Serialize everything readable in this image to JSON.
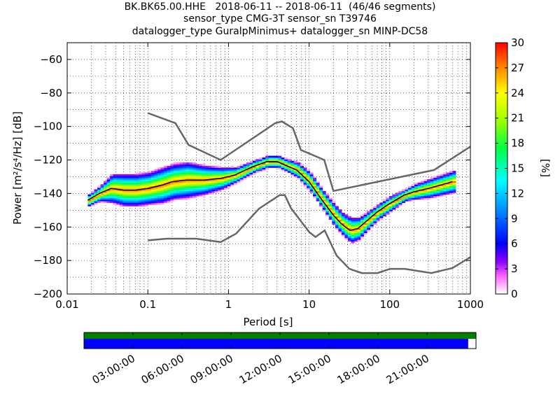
{
  "chart_data": {
    "type": "heatmap",
    "title_lines": [
      "BK.BK65.00.HHE   2018-06-11 -- 2018-06-11  (46/46 segments)",
      "sensor_type CMG-3T sensor_sn T39746",
      "datalogger_type GuralpMinimus+ datalogger_sn MINP-DC58"
    ],
    "xlabel": "Period [s]",
    "ylabel": "Power [m²/s⁴/Hz] [dB]",
    "xscale": "log",
    "xlim": [
      0.01,
      1000
    ],
    "ylim": [
      -200,
      -50
    ],
    "xticks": [
      {
        "v": 0.01,
        "label": "0.01"
      },
      {
        "v": 0.1,
        "label": "0.1"
      },
      {
        "v": 1,
        "label": "1"
      },
      {
        "v": 10,
        "label": "10"
      },
      {
        "v": 100,
        "label": "100"
      },
      {
        "v": 1000,
        "label": "1000"
      }
    ],
    "yticks": [
      -60,
      -80,
      -100,
      -120,
      -140,
      -160,
      -180,
      -200
    ],
    "grid": true,
    "colorbar": {
      "label": "[%]",
      "range": [
        0,
        30
      ],
      "ticks": [
        0,
        3,
        6,
        9,
        12,
        15,
        18,
        21,
        24,
        27,
        30
      ],
      "colormap": "pqlx"
    },
    "mean_curve": [
      [
        0.018,
        -144
      ],
      [
        0.025,
        -140
      ],
      [
        0.035,
        -137
      ],
      [
        0.05,
        -138
      ],
      [
        0.07,
        -138
      ],
      [
        0.1,
        -137
      ],
      [
        0.15,
        -135
      ],
      [
        0.2,
        -133
      ],
      [
        0.3,
        -132
      ],
      [
        0.5,
        -132
      ],
      [
        0.8,
        -131
      ],
      [
        1.2,
        -129
      ],
      [
        2,
        -124
      ],
      [
        3,
        -121
      ],
      [
        4,
        -121
      ],
      [
        5,
        -123
      ],
      [
        7,
        -126
      ],
      [
        10,
        -133
      ],
      [
        14,
        -143
      ],
      [
        20,
        -153
      ],
      [
        25,
        -158
      ],
      [
        32,
        -162
      ],
      [
        40,
        -161
      ],
      [
        50,
        -157
      ],
      [
        70,
        -151
      ],
      [
        100,
        -146
      ],
      [
        150,
        -141
      ],
      [
        200,
        -139
      ],
      [
        300,
        -137
      ],
      [
        600,
        -133
      ]
    ],
    "heat_bands": [
      [
        0.018,
        -144,
        3
      ],
      [
        0.025,
        -140,
        4
      ],
      [
        0.035,
        -137,
        8
      ],
      [
        0.05,
        -138,
        9
      ],
      [
        0.07,
        -138,
        9
      ],
      [
        0.1,
        -137,
        9
      ],
      [
        0.15,
        -135,
        10
      ],
      [
        0.2,
        -133,
        10
      ],
      [
        0.3,
        -132,
        10
      ],
      [
        0.5,
        -132,
        8
      ],
      [
        0.8,
        -131,
        6
      ],
      [
        1.2,
        -129,
        4
      ],
      [
        2,
        -124,
        3
      ],
      [
        3,
        -121,
        3
      ],
      [
        4,
        -121,
        3
      ],
      [
        5,
        -123,
        3
      ],
      [
        7,
        -126,
        4
      ],
      [
        10,
        -133,
        5
      ],
      [
        14,
        -143,
        5
      ],
      [
        20,
        -153,
        6
      ],
      [
        25,
        -158,
        6
      ],
      [
        32,
        -162,
        7
      ],
      [
        40,
        -161,
        6
      ],
      [
        50,
        -157,
        5
      ],
      [
        70,
        -151,
        4
      ],
      [
        100,
        -146,
        4
      ],
      [
        150,
        -141,
        3
      ],
      [
        200,
        -139,
        4
      ],
      [
        300,
        -137,
        5
      ],
      [
        600,
        -133,
        6
      ]
    ],
    "nhnm": [
      [
        0.1,
        -92
      ],
      [
        0.22,
        -98
      ],
      [
        0.32,
        -111
      ],
      [
        0.8,
        -120
      ],
      [
        3.8,
        -98
      ],
      [
        4.6,
        -97
      ],
      [
        6.3,
        -101
      ],
      [
        7.9,
        -114
      ],
      [
        15.4,
        -120
      ],
      [
        20,
        -138.5
      ],
      [
        354,
        -126
      ],
      [
        1000,
        -112
      ]
    ],
    "nlnm": [
      [
        0.1,
        -168
      ],
      [
        0.17,
        -167
      ],
      [
        0.4,
        -167
      ],
      [
        0.8,
        -169
      ],
      [
        1.24,
        -164
      ],
      [
        2.4,
        -149
      ],
      [
        4.3,
        -141
      ],
      [
        5,
        -141
      ],
      [
        6,
        -149
      ],
      [
        10,
        -163
      ],
      [
        12,
        -166
      ],
      [
        15.6,
        -162
      ],
      [
        21.9,
        -177
      ],
      [
        31.6,
        -185
      ],
      [
        45,
        -187.5
      ],
      [
        70,
        -187.5
      ],
      [
        101,
        -185
      ],
      [
        154,
        -185
      ],
      [
        328,
        -187.5
      ],
      [
        600,
        -184.5
      ],
      [
        1000,
        -178
      ]
    ]
  },
  "coverage_bar": {
    "time_ticks": [
      "03:00:00",
      "06:00:00",
      "09:00:00",
      "12:00:00",
      "15:00:00",
      "18:00:00",
      "21:00:00"
    ],
    "top_color": "#008000",
    "bottom_color": "#0000ff",
    "data_fraction": 0.98
  }
}
